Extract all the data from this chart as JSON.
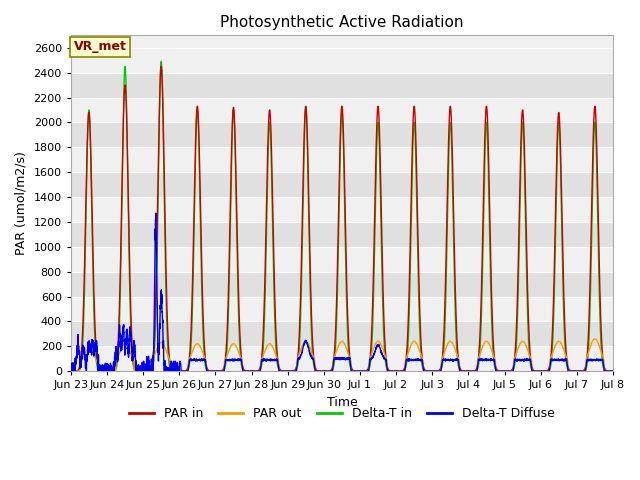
{
  "title": "Photosynthetic Active Radiation",
  "ylabel": "PAR (umol/m2/s)",
  "xlabel": "Time",
  "ylim": [
    0,
    2700
  ],
  "background_color": "#ffffff",
  "plot_bg_light": "#f0f0f0",
  "plot_bg_dark": "#e0e0e0",
  "grid_color": "#ffffff",
  "colors": {
    "PAR_in": "#cc0000",
    "PAR_out": "#ff9900",
    "Delta_T_in": "#00cc00",
    "Delta_T_Diffuse": "#0000ee"
  },
  "legend_labels": [
    "PAR in",
    "PAR out",
    "Delta-T in",
    "Delta-T Diffuse"
  ],
  "vr_met_label": "VR_met",
  "tick_labels": [
    "Jun 23",
    "Jun 24",
    "Jun 25",
    "Jun 26",
    "Jun 27",
    "Jun 28",
    "Jun 29",
    "Jun 30",
    "Jul 1",
    "Jul 2",
    "Jul 3",
    "Jul 4",
    "Jul 5",
    "Jul 6",
    "Jul 7",
    "Jul 8"
  ]
}
